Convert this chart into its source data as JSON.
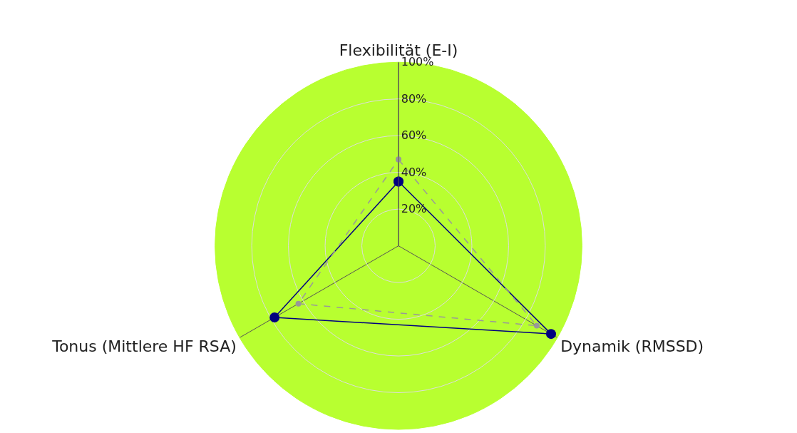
{
  "chart_data": {
    "type": "radar",
    "categories": [
      "Flexibilität (E-I)",
      "Dynamik (RMSSD)",
      "Tonus (Mittlere HF RSA)"
    ],
    "series": [
      {
        "color": "#000080",
        "values": [
          35,
          96,
          78
        ],
        "marker": "circle",
        "line_style": "solid"
      },
      {
        "color": "#999999",
        "values": [
          47,
          87,
          63
        ],
        "marker": "circle",
        "line_style": "dashed"
      }
    ],
    "ylim": [
      0,
      100
    ],
    "yticks": [
      {
        "value": 20,
        "label": "20%"
      },
      {
        "value": 40,
        "label": "40%"
      },
      {
        "value": 60,
        "label": "60%"
      },
      {
        "value": 80,
        "label": "80%"
      },
      {
        "value": 100,
        "label": "100%"
      }
    ],
    "grid": true
  }
}
